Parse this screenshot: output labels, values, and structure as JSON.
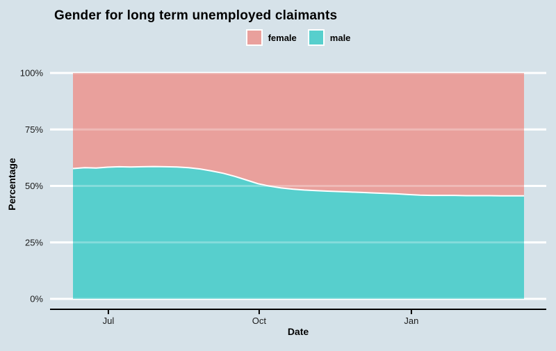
{
  "chart": {
    "title": "Gender for long term unemployed claimants",
    "xlabel": "Date",
    "ylabel": "Percentage"
  },
  "colors": {
    "background": "#D6E2E9",
    "gridline": "#FFFFFF",
    "axis_line": "#000000",
    "tick_label": "#1A1A1A",
    "female": "#E9A09C",
    "male": "#57CFCD",
    "boundary_stroke": "#FFFFFF"
  },
  "chart_data": {
    "type": "area",
    "stacked": "percent",
    "title": "Gender for long term unemployed claimants",
    "xlabel": "Date",
    "ylabel": "Percentage",
    "ylim": [
      0,
      100
    ],
    "grid": true,
    "legend_position": "top-center",
    "y_ticks": [
      {
        "value": 0,
        "label": "0%"
      },
      {
        "value": 25,
        "label": "25%"
      },
      {
        "value": 50,
        "label": "50%"
      },
      {
        "value": 75,
        "label": "75%"
      },
      {
        "value": 100,
        "label": "100%"
      }
    ],
    "x_ticks": [
      {
        "pos": 3.06,
        "label": "Jul"
      },
      {
        "pos": 16.1,
        "label": "Oct"
      },
      {
        "pos": 29.26,
        "label": "Jan"
      }
    ],
    "x_note": "evenly spaced weekly observations, index 0..39",
    "series": [
      {
        "name": "male",
        "color": "#57CFCD",
        "values": [
          57.7,
          58.1,
          57.9,
          58.3,
          58.5,
          58.4,
          58.5,
          58.6,
          58.5,
          58.4,
          58.1,
          57.5,
          56.6,
          55.6,
          54.2,
          52.6,
          51.0,
          49.9,
          49.1,
          48.6,
          48.2,
          47.9,
          47.7,
          47.5,
          47.3,
          47.1,
          46.9,
          46.7,
          46.5,
          46.2,
          45.9,
          45.8,
          45.8,
          45.8,
          45.7,
          45.7,
          45.7,
          45.6,
          45.6,
          45.6
        ]
      },
      {
        "name": "female",
        "color": "#E9A09C",
        "values": [
          42.3,
          41.9,
          42.1,
          41.7,
          41.5,
          41.6,
          41.5,
          41.4,
          41.5,
          41.6,
          41.9,
          42.5,
          43.4,
          44.4,
          45.8,
          47.4,
          49.0,
          50.1,
          50.9,
          51.4,
          51.8,
          52.1,
          52.3,
          52.5,
          52.7,
          52.9,
          53.1,
          53.3,
          53.5,
          53.8,
          54.1,
          54.2,
          54.2,
          54.2,
          54.3,
          54.3,
          54.3,
          54.4,
          54.4,
          54.4
        ]
      }
    ],
    "legend": [
      {
        "label": "female",
        "color": "#E9A09C"
      },
      {
        "label": "male",
        "color": "#57CFCD"
      }
    ]
  }
}
